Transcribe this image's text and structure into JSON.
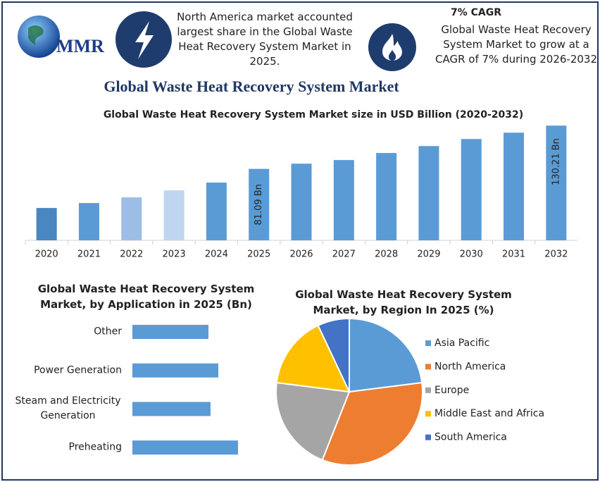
{
  "header": {
    "logo": "MMR",
    "note_left": "North America market accounted largest share in the Global Waste Heat Recovery System Market in 2025.",
    "cagr_title": "7% CAGR",
    "cagr_text": "Global Waste Heat Recovery System Market to grow at a CAGR of 7% during 2026-2032",
    "title": "Global Waste Heat Recovery System Market"
  },
  "chart_data": [
    {
      "type": "bar",
      "title": "Global Waste Heat Recovery System Market size in USD Billion (2020-2032)",
      "categories": [
        "2020",
        "2021",
        "2022",
        "2023",
        "2024",
        "2025",
        "2026",
        "2027",
        "2028",
        "2029",
        "2030",
        "2031",
        "2032"
      ],
      "values": [
        36.7,
        42.3,
        48.7,
        56.7,
        65.5,
        81.09,
        87.0,
        91.1,
        99.1,
        107.0,
        115.0,
        122.2,
        130.21
      ],
      "value_labels": [
        null,
        null,
        null,
        null,
        null,
        "81.09 Bn",
        null,
        null,
        null,
        null,
        null,
        null,
        "130.21 Bn"
      ],
      "colors": [
        "#4a86c0",
        "#5b9bd5",
        "#9dbde6",
        "#c0d5ef",
        "#5b9bd5",
        "#5b9bd5",
        "#5b9bd5",
        "#5b9bd5",
        "#5b9bd5",
        "#5b9bd5",
        "#5b9bd5",
        "#5b9bd5",
        "#5b9bd5"
      ],
      "ylim": [
        0,
        140
      ]
    },
    {
      "type": "hbar",
      "title": "Global Waste Heat Recovery System Market, by Application in 2025 (Bn)",
      "categories": [
        "Other",
        "Power Generation",
        "Steam and Electricity Generation",
        "Preheating"
      ],
      "values": [
        1.08,
        1.22,
        1.11,
        1.5
      ],
      "color": "#5b9bd5",
      "xlim": [
        0,
        1.6
      ]
    },
    {
      "type": "pie",
      "title": "Global Waste Heat Recovery System Market, by Region In 2025 (%)",
      "categories": [
        "Asia Pacific",
        "North America",
        "Europe",
        "Middle East and Africa",
        "South America"
      ],
      "values": [
        23,
        33,
        21,
        16,
        7
      ],
      "colors": [
        "#5b9bd5",
        "#ed7d31",
        "#a5a5a5",
        "#ffc000",
        "#4472c4"
      ],
      "legend": "right"
    }
  ]
}
